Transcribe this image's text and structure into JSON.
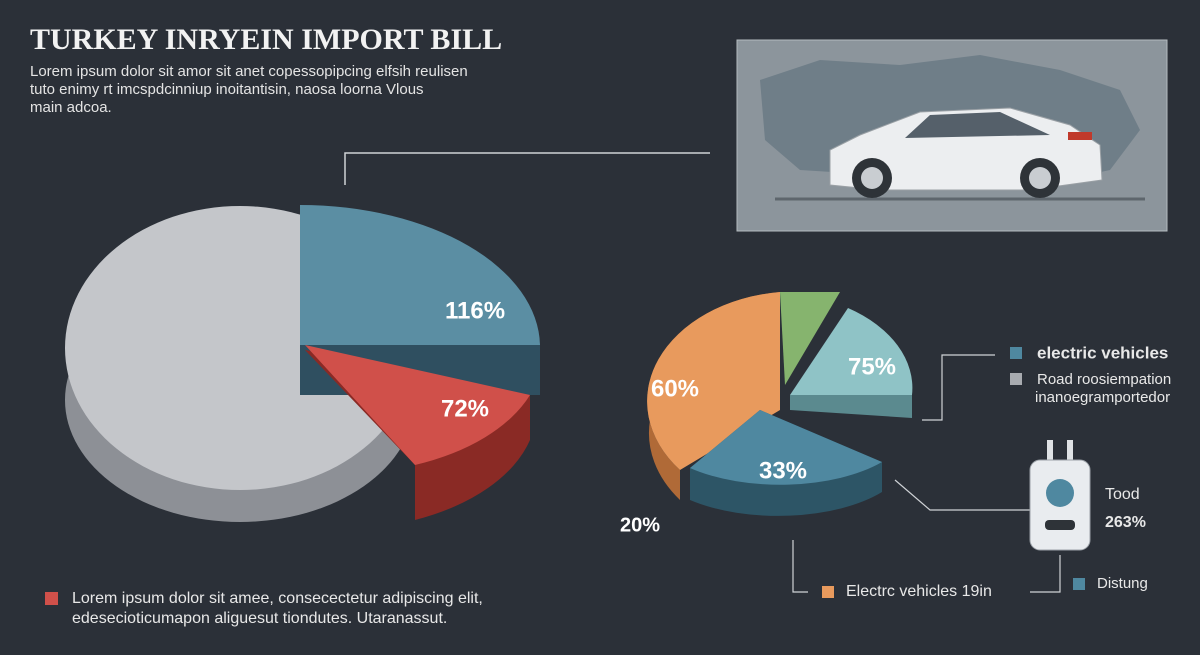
{
  "header": {
    "title": "TURKEY INRYEIN IMPORT BILL",
    "intro": [
      "Lorem ipsum dolor sit amor sit anet copessopipcing elfsih reulisen",
      "tuto enimy rt imcspdcinniup inoitantisin, naosa loorna Vlous",
      "main adcoa."
    ]
  },
  "left_pie": {
    "labels": [
      "116%",
      "72%"
    ]
  },
  "right_pie": {
    "labels": [
      "60%",
      "75%",
      "33%",
      "20%"
    ]
  },
  "legend": {
    "items": [
      "electric vehicles",
      "Road roosiempation",
      "inanoegramportedor"
    ]
  },
  "charger": {
    "label": "Tood",
    "value": "263%"
  },
  "note": {
    "lines": [
      "Lorem ipsum dolor sit amee, consecectetur adipiscing elit,",
      "edesecioticumapon aliguesut tiondutes. Utaranassut."
    ]
  },
  "bottom_legend": {
    "items": [
      "Electrc vehicles 19in",
      "Distung"
    ]
  }
}
